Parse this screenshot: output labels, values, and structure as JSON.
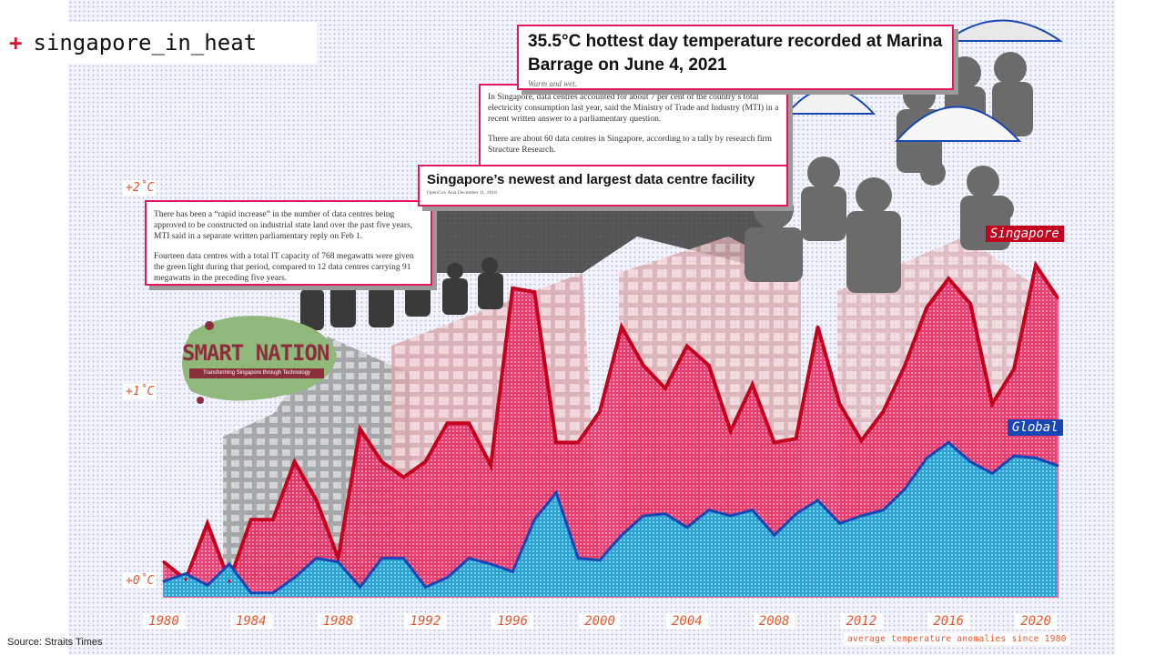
{
  "title": {
    "plus": "+",
    "text": "singapore_in_heat"
  },
  "source": "Source: Straits Times",
  "clippings": {
    "council_reply": {
      "p1": "There has been a “rapid increase” in the number of data centres being approved to be constructed on industrial state land over the past five years, MTI said in a separate written parliamentary reply on Feb 1.",
      "p2": "Fourteen data centres with a total IT capacity of 768 megawatts were given the green light during that period, compared to 12 data centres carrying 91 megawatts in the preceding five years."
    },
    "data_centres": {
      "p1": "In Singapore, data centres accounted for about 7 per cent of the country’s total electricity consumption last year, said the Ministry of Trade and Industry (MTI) in a recent written answer to a parliamentary question.",
      "p2": "There are about 60 data centres in Singapore, according to a tally by research firm Structure Research."
    },
    "newest_facility": {
      "headline": "Singapore’s newest and largest data centre facility",
      "meta": "OpenGov Asia     December 11, 2018"
    },
    "hottest_day": {
      "headline": "35.5°C hottest day temperature recorded at Marina Barrage on June 4, 2021",
      "sub": "Warm and wet."
    }
  },
  "badge": {
    "logo_text": "SMART NATION",
    "tagline": "Transforming Singapore through Technology"
  },
  "colors": {
    "singapore_fill": "#e8245e",
    "singapore_line": "#c4001f",
    "global_fill": "#21a8d8",
    "global_line": "#1847b5",
    "label": "#e4572e"
  },
  "chart_data": {
    "type": "area",
    "xlabel": "",
    "ylabel": "",
    "note": "average temperature anomalies since 1980",
    "xlim": [
      1980,
      2021
    ],
    "ylim": [
      0,
      2
    ],
    "x_ticks": [
      "1980",
      "1984",
      "1988",
      "1992",
      "1996",
      "2000",
      "2004",
      "2008",
      "2012",
      "2016",
      "2020"
    ],
    "y_ticks": [
      {
        "value": 0,
        "label": "+0˚C"
      },
      {
        "value": 1,
        "label": "+1˚C"
      },
      {
        "value": 2,
        "label": "+2˚C"
      }
    ],
    "x": [
      1980,
      1981,
      1982,
      1983,
      1984,
      1985,
      1986,
      1987,
      1988,
      1989,
      1990,
      1991,
      1992,
      1993,
      1994,
      1995,
      1996,
      1997,
      1998,
      1999,
      2000,
      2001,
      2002,
      2003,
      2004,
      2005,
      2006,
      2007,
      2008,
      2009,
      2010,
      2011,
      2012,
      2013,
      2014,
      2015,
      2016,
      2017,
      2018,
      2019,
      2020,
      2021
    ],
    "series": [
      {
        "name": "Singapore",
        "values": [
          0.18,
          0.09,
          0.38,
          0.08,
          0.4,
          0.4,
          0.7,
          0.5,
          0.2,
          0.87,
          0.7,
          0.62,
          0.7,
          0.9,
          0.9,
          0.68,
          1.6,
          1.58,
          0.8,
          0.8,
          0.96,
          1.4,
          1.2,
          1.08,
          1.3,
          1.2,
          0.86,
          1.1,
          0.8,
          0.82,
          1.4,
          1.0,
          0.81,
          0.96,
          1.2,
          1.5,
          1.65,
          1.52,
          1.0,
          1.18,
          1.72,
          1.55
        ]
      },
      {
        "name": "Global",
        "values": [
          0.08,
          0.12,
          0.06,
          0.17,
          0.02,
          0.02,
          0.1,
          0.2,
          0.18,
          0.05,
          0.2,
          0.2,
          0.05,
          0.1,
          0.2,
          0.17,
          0.13,
          0.4,
          0.54,
          0.2,
          0.19,
          0.32,
          0.42,
          0.43,
          0.36,
          0.45,
          0.42,
          0.45,
          0.32,
          0.43,
          0.5,
          0.38,
          0.42,
          0.45,
          0.56,
          0.72,
          0.8,
          0.7,
          0.64,
          0.73,
          0.72,
          0.68
        ]
      }
    ]
  }
}
